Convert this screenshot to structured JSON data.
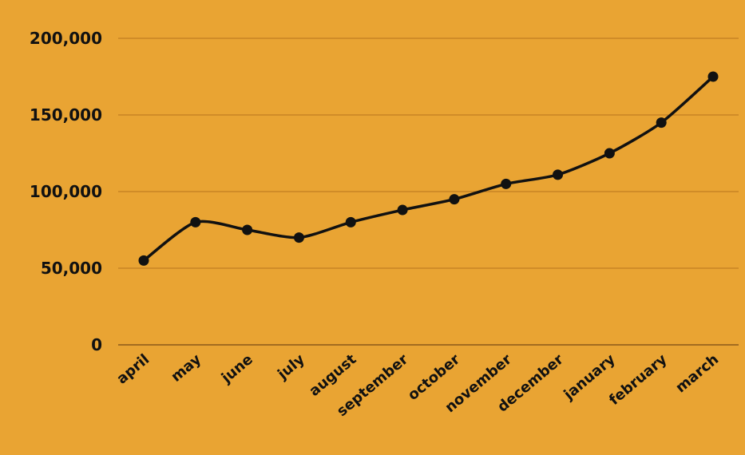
{
  "chart_data": {
    "type": "line",
    "title": "",
    "xlabel": "",
    "ylabel": "",
    "categories": [
      "april",
      "may",
      "june",
      "july",
      "august",
      "september",
      "october",
      "november",
      "december",
      "january",
      "february",
      "march"
    ],
    "series": [
      {
        "values": [
          55000,
          80000,
          75000,
          70000,
          80000,
          88000,
          95000,
          105000,
          111000,
          125000,
          145000,
          175000
        ]
      }
    ],
    "ylim": [
      0,
      200000
    ],
    "yticks": [
      "0",
      "50,000",
      "100,000",
      "150,000",
      "200,000"
    ],
    "grid": true,
    "legend": "none",
    "colors": {
      "background": "#E9A433",
      "line": "#111111",
      "grid": "#B8741E",
      "text": "#111111"
    }
  }
}
